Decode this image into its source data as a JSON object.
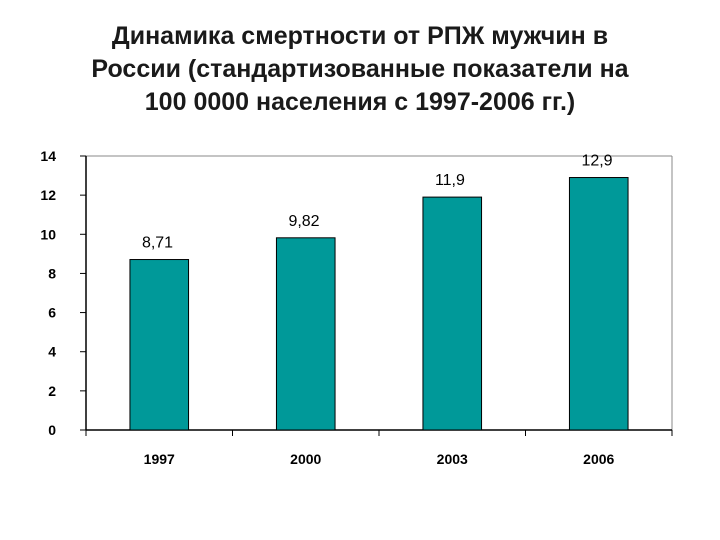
{
  "chart_data": {
    "type": "bar",
    "title_lines": [
      "Динамика смертности от РПЖ мужчин в",
      "России (стандартизованные показатели на",
      "100 0000 населения с 1997-2006 гг.)"
    ],
    "categories": [
      "1997",
      "2000",
      "2003",
      "2006"
    ],
    "values": [
      8.71,
      9.82,
      11.9,
      12.9
    ],
    "data_labels": [
      "8,71",
      "9,82",
      "11,9",
      "12,9"
    ],
    "ylim": [
      0,
      14
    ],
    "yticks": [
      "0",
      "2",
      "4",
      "6",
      "8",
      "10",
      "12",
      "14"
    ],
    "grid": false,
    "colors": {
      "bar": "#009999",
      "bar_stroke": "#000000",
      "axis": "#000000"
    }
  }
}
